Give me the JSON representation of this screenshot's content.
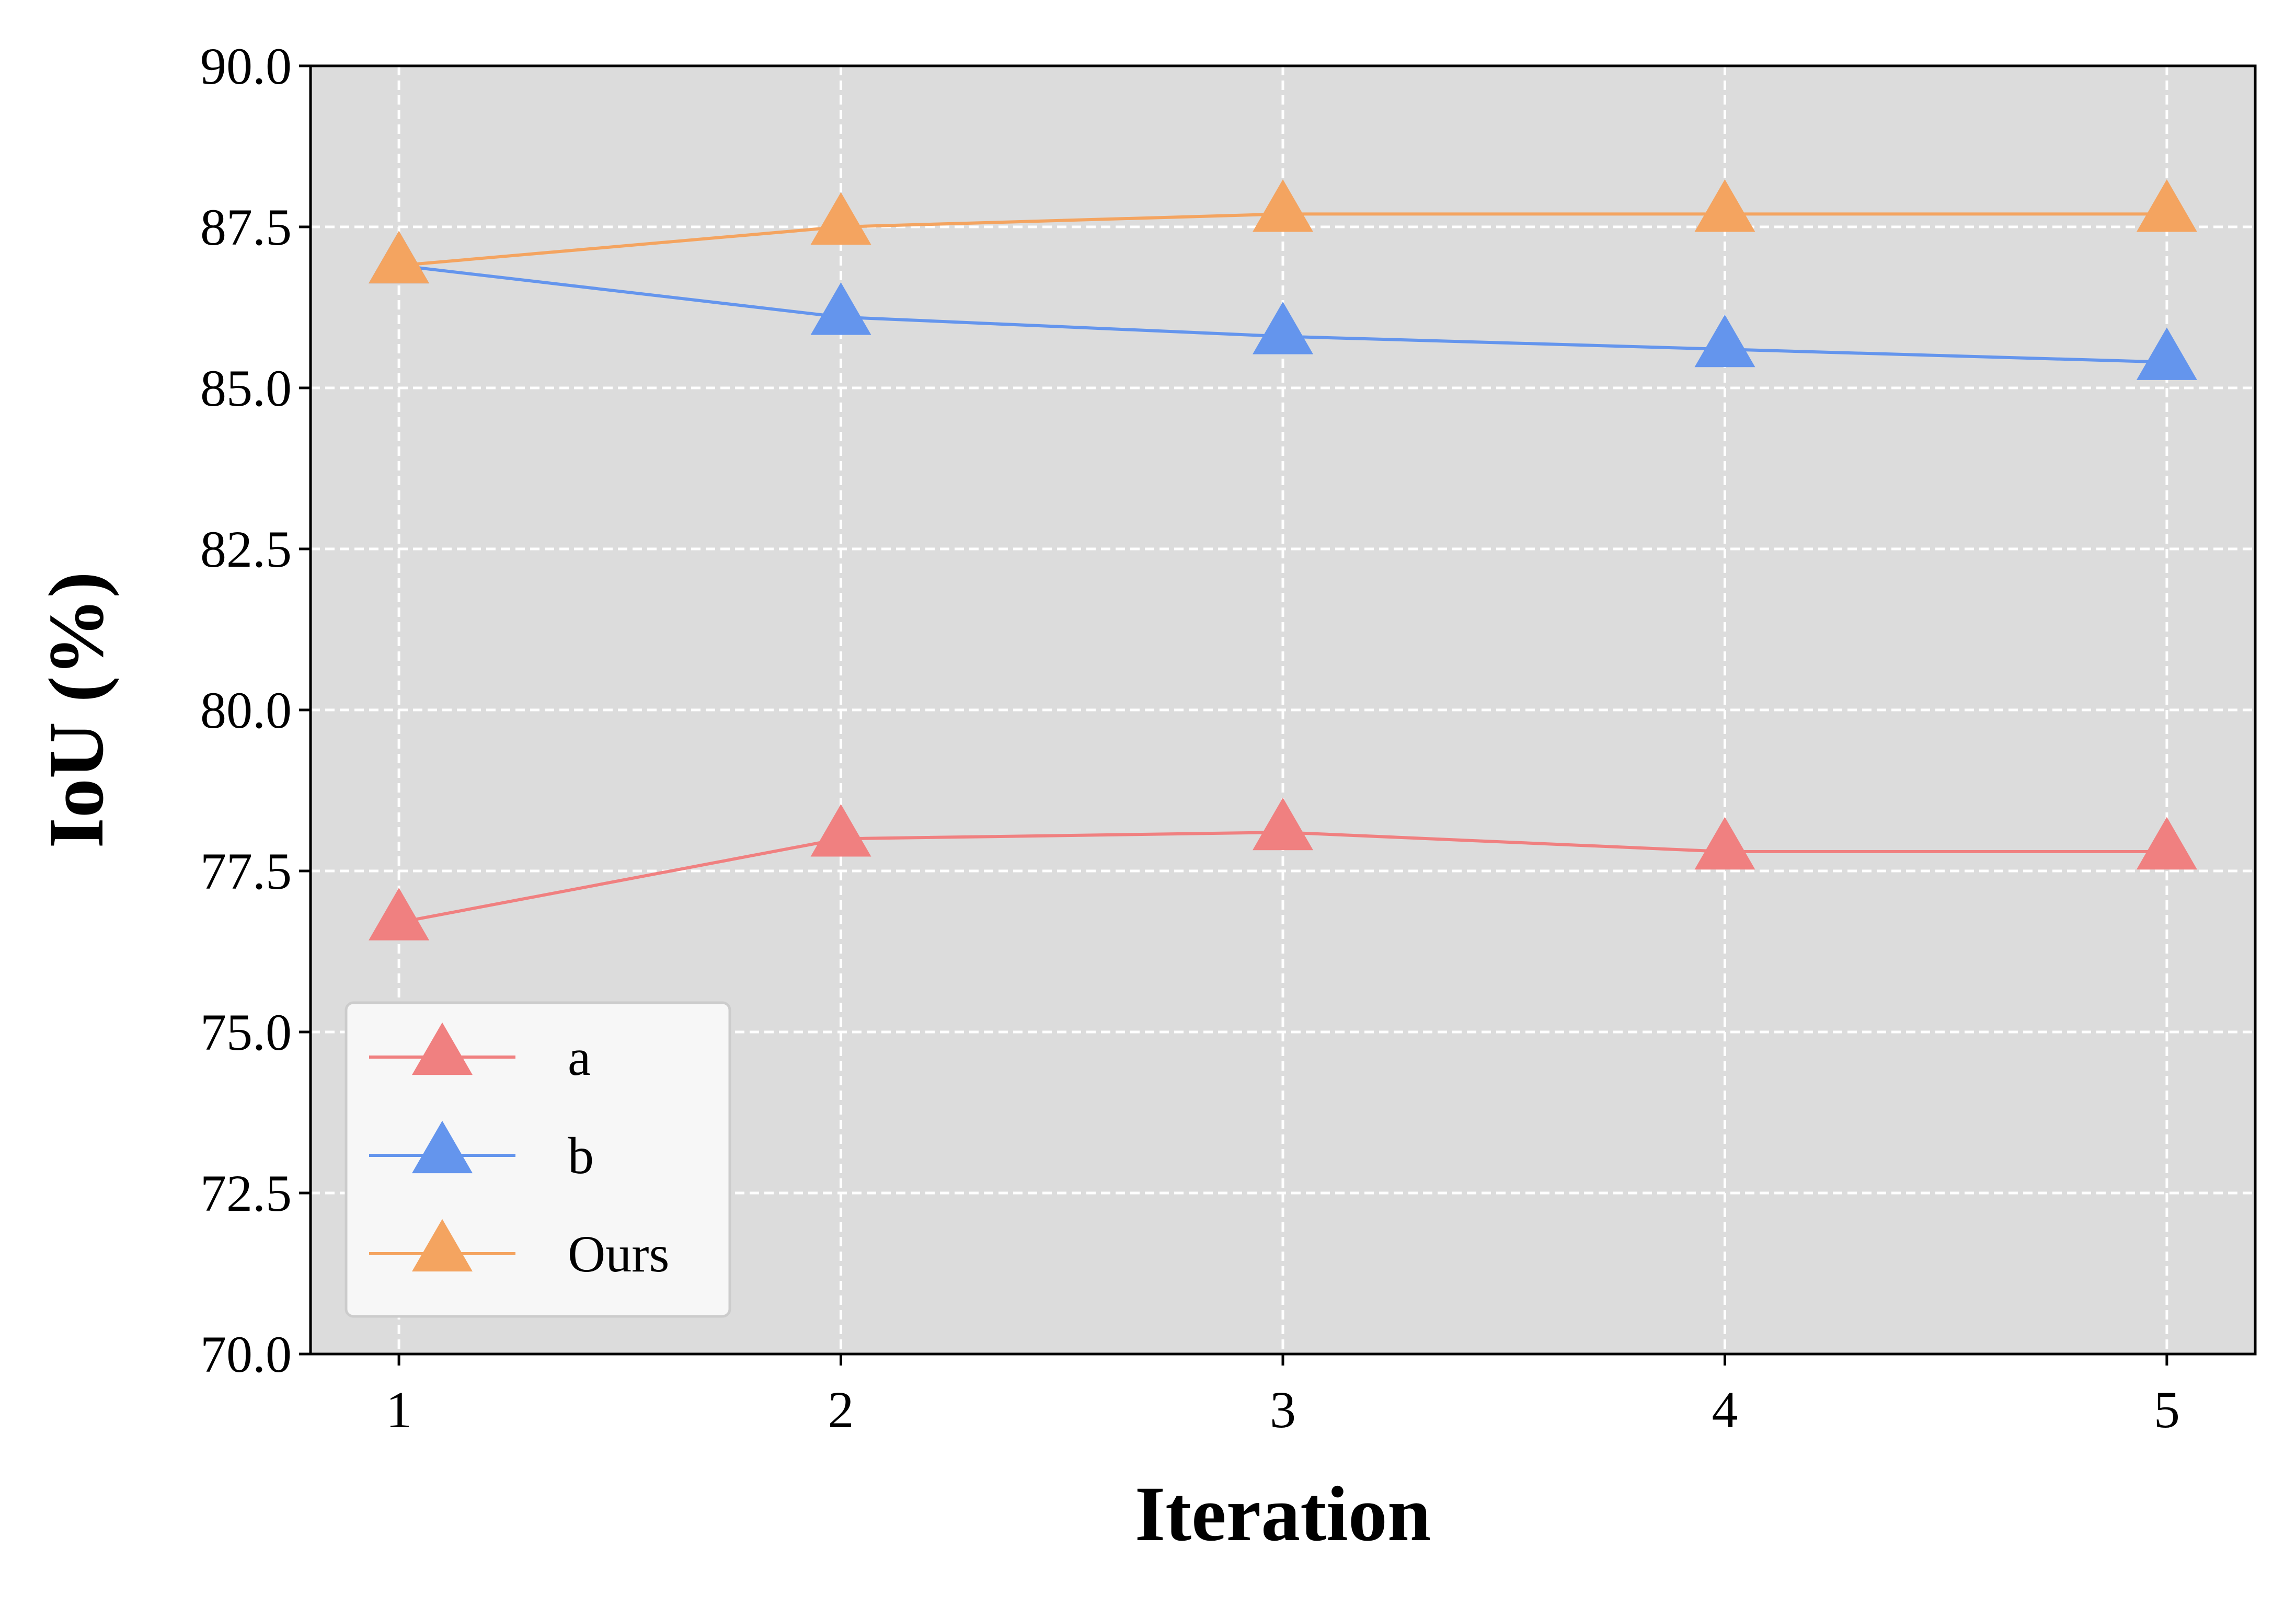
{
  "chart_data": {
    "type": "line",
    "xlabel": "Iteration",
    "ylabel": "IoU (%)",
    "x": [
      1,
      2,
      3,
      4,
      5
    ],
    "xlim": [
      0.8,
      5.2
    ],
    "ylim": [
      70.0,
      90.0
    ],
    "xticks": [
      "1",
      "2",
      "3",
      "4",
      "5"
    ],
    "yticks": [
      "70.0",
      "72.5",
      "75.0",
      "77.5",
      "80.0",
      "82.5",
      "85.0",
      "87.5",
      "90.0"
    ],
    "ytick_values": [
      70.0,
      72.5,
      75.0,
      77.5,
      80.0,
      82.5,
      85.0,
      87.5,
      90.0
    ],
    "grid": true,
    "background": "#dcdcdc",
    "legend_position": "lower-left",
    "marker": "triangle",
    "series": [
      {
        "name": "a",
        "color": "#f08080",
        "values": [
          76.7,
          78.0,
          78.1,
          77.8,
          77.8
        ]
      },
      {
        "name": "b",
        "color": "#6495ed",
        "values": [
          86.9,
          86.1,
          85.8,
          85.6,
          85.4
        ]
      },
      {
        "name": "Ours",
        "color": "#f4a460",
        "values": [
          86.9,
          87.5,
          87.7,
          87.7,
          87.7
        ]
      }
    ]
  }
}
